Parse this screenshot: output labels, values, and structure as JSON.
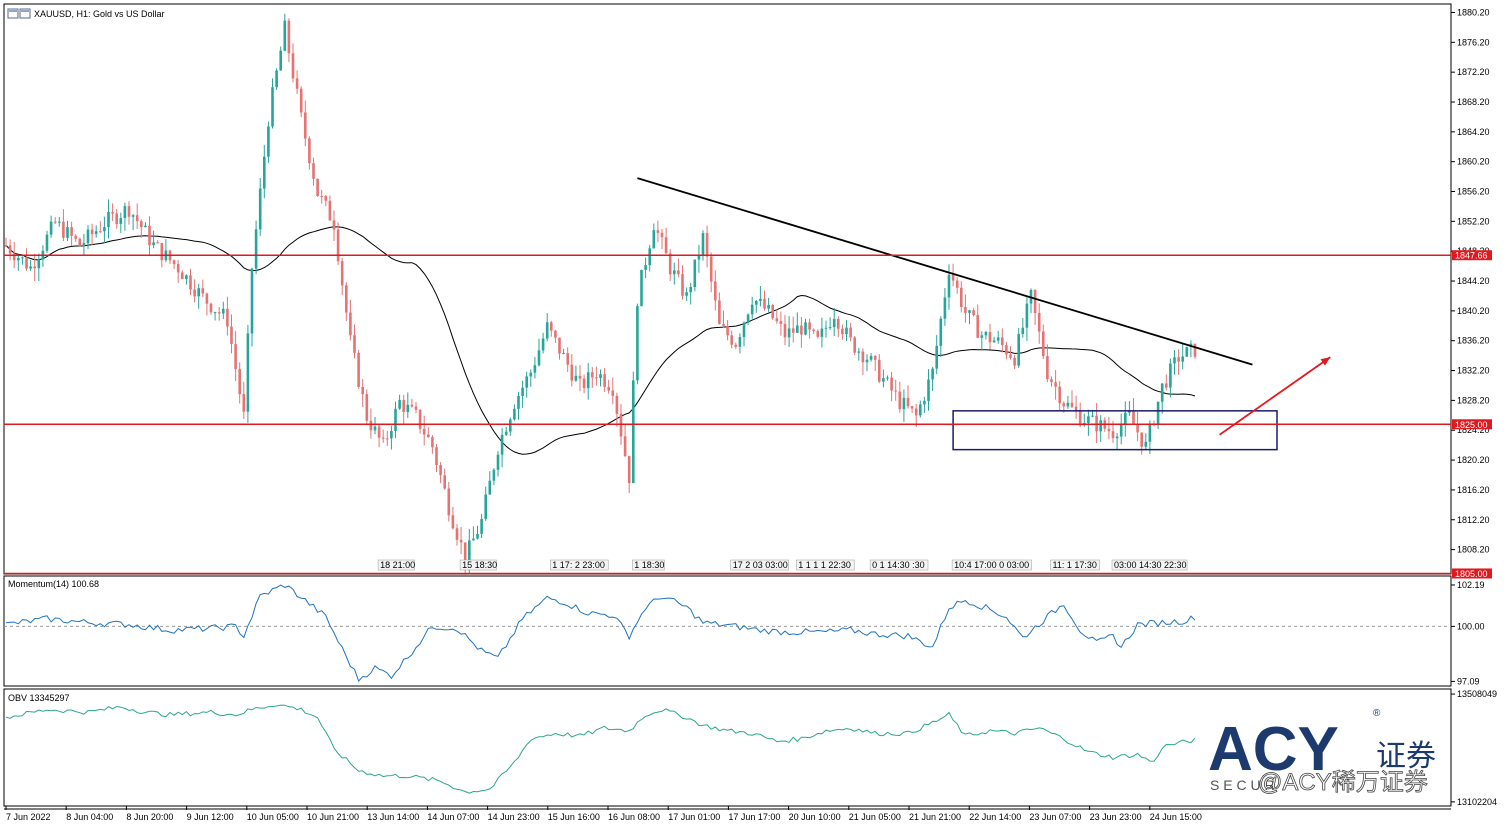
{
  "header": {
    "title": "XAUUSD, H1:  Gold vs US Dollar"
  },
  "chart_data": {
    "type": "candlestick",
    "symbol": "XAUUSD",
    "timeframe": "H1",
    "ylim": [
      1804,
      1880.8
    ],
    "y_ticks": [
      "1880.20",
      "1876.20",
      "1872.20",
      "1868.20",
      "1864.20",
      "1860.20",
      "1856.20",
      "1852.20",
      "1848.20",
      "1844.20",
      "1840.20",
      "1836.20",
      "1832.20",
      "1828.20",
      "1824.20",
      "1820.20",
      "1816.20",
      "1812.20",
      "1808.20"
    ],
    "x_ticks": [
      "7 Jun 2022",
      "8 Jun 04:00",
      "8 Jun 20:00",
      "9 Jun 12:00",
      "10 Jun 05:00",
      "10 Jun 21:00",
      "13 Jun 14:00",
      "14 Jun 07:00",
      "14 Jun 23:00",
      "15 Jun 16:00",
      "16 Jun 08:00",
      "17 Jun 01:00",
      "17 Jun 17:00",
      "20 Jun 10:00",
      "21 Jun 05:00",
      "21 Jun 21:00",
      "22 Jun 14:00",
      "23 Jun 07:00",
      "23 Jun 23:00",
      "24 Jun 15:00"
    ],
    "price_anchors": [
      [
        0,
        1849
      ],
      [
        6,
        1846
      ],
      [
        12,
        1852
      ],
      [
        18,
        1849
      ],
      [
        24,
        1852
      ],
      [
        30,
        1854
      ],
      [
        36,
        1849
      ],
      [
        42,
        1846
      ],
      [
        48,
        1842
      ],
      [
        54,
        1839
      ],
      [
        58,
        1826
      ],
      [
        60,
        1846
      ],
      [
        64,
        1866
      ],
      [
        68,
        1878
      ],
      [
        72,
        1866
      ],
      [
        76,
        1856
      ],
      [
        80,
        1852
      ],
      [
        84,
        1836
      ],
      [
        88,
        1826
      ],
      [
        92,
        1822
      ],
      [
        96,
        1828
      ],
      [
        100,
        1826
      ],
      [
        104,
        1822
      ],
      [
        108,
        1814
      ],
      [
        112,
        1807
      ],
      [
        116,
        1812
      ],
      [
        120,
        1822
      ],
      [
        124,
        1828
      ],
      [
        128,
        1832
      ],
      [
        132,
        1838
      ],
      [
        136,
        1834
      ],
      [
        140,
        1830
      ],
      [
        144,
        1832
      ],
      [
        148,
        1830
      ],
      [
        152,
        1818
      ],
      [
        154,
        1842
      ],
      [
        158,
        1852
      ],
      [
        162,
        1846
      ],
      [
        166,
        1842
      ],
      [
        170,
        1850
      ],
      [
        174,
        1838
      ],
      [
        178,
        1836
      ],
      [
        182,
        1842
      ],
      [
        186,
        1840
      ],
      [
        190,
        1837
      ],
      [
        194,
        1838
      ],
      [
        198,
        1836
      ],
      [
        202,
        1840
      ],
      [
        206,
        1836
      ],
      [
        210,
        1834
      ],
      [
        214,
        1831
      ],
      [
        218,
        1828
      ],
      [
        222,
        1826
      ],
      [
        226,
        1832
      ],
      [
        230,
        1846
      ],
      [
        234,
        1840
      ],
      [
        238,
        1837
      ],
      [
        242,
        1836
      ],
      [
        246,
        1834
      ],
      [
        250,
        1842
      ],
      [
        254,
        1832
      ],
      [
        258,
        1828
      ],
      [
        262,
        1826
      ],
      [
        266,
        1825
      ],
      [
        270,
        1824
      ],
      [
        274,
        1826
      ],
      [
        278,
        1822
      ],
      [
        282,
        1830
      ],
      [
        286,
        1834
      ],
      [
        290,
        1835
      ]
    ],
    "series": [
      {
        "name": "XAUUSD, H1:  Gold vs US Dollar",
        "style": "candles",
        "bull_color": "#26a69a",
        "bear_color": "#e57373"
      },
      {
        "name": "",
        "style": "moving-average",
        "color": "#000000"
      }
    ],
    "horizontal_levels": [
      {
        "value": 1847.66,
        "label": "1847.66",
        "color": "#e0191f"
      },
      {
        "value": 1825.0,
        "label": "1825.00",
        "color": "#e0191f"
      },
      {
        "value": 1805.0,
        "label": "1805.00",
        "color": "#e0191f"
      }
    ],
    "trendline": {
      "from": [
        154,
        1858
      ],
      "to": [
        304,
        1833
      ],
      "color": "#000000"
    },
    "range_box": {
      "x": [
        231,
        310
      ],
      "y": [
        1821.6,
        1826.8
      ],
      "color": "#1a1a6e"
    },
    "arrow": {
      "from": [
        296,
        1823.6
      ],
      "to": [
        323,
        1834
      ],
      "color": "#e0191f"
    },
    "time_labels": [
      {
        "x": 91,
        "text": "18 21:00"
      },
      {
        "x": 111,
        "text": "15 18:30"
      },
      {
        "x": 133,
        "text": "1 17: 2 23:00"
      },
      {
        "x": 153,
        "text": "1 18:30"
      },
      {
        "x": 177,
        "text": "17 2 03 03:00"
      },
      {
        "x": 193,
        "text": "1 1 1 1 22:30"
      },
      {
        "x": 211,
        "text": "0 1 14:30 :30"
      },
      {
        "x": 231,
        "text": "10:4 17:00 0 03:00"
      },
      {
        "x": 255,
        "text": "11: 1 17:30"
      },
      {
        "x": 270,
        "text": "03:00 14:30 22:30"
      }
    ],
    "momentum": {
      "label": "Momentum(14) 100.68",
      "ticks": [
        "102.19",
        "100.00",
        "97.09"
      ],
      "ylim": [
        96.9,
        102.4
      ],
      "baseline": 100.0,
      "color": "#1e73be",
      "anchors": [
        [
          0,
          100.1
        ],
        [
          10,
          100.4
        ],
        [
          20,
          100.2
        ],
        [
          30,
          100.1
        ],
        [
          40,
          99.8
        ],
        [
          50,
          99.9
        ],
        [
          56,
          100.0
        ],
        [
          58,
          99.5
        ],
        [
          62,
          101.6
        ],
        [
          68,
          102.2
        ],
        [
          74,
          101.2
        ],
        [
          78,
          100.5
        ],
        [
          82,
          98.8
        ],
        [
          86,
          97.2
        ],
        [
          90,
          97.8
        ],
        [
          94,
          97.4
        ],
        [
          98,
          98.4
        ],
        [
          104,
          100.0
        ],
        [
          110,
          99.9
        ],
        [
          116,
          98.7
        ],
        [
          120,
          98.3
        ],
        [
          126,
          100.4
        ],
        [
          132,
          101.5
        ],
        [
          136,
          101.3
        ],
        [
          142,
          100.7
        ],
        [
          148,
          100.6
        ],
        [
          152,
          99.5
        ],
        [
          156,
          101.0
        ],
        [
          160,
          101.6
        ],
        [
          166,
          101.0
        ],
        [
          170,
          100.2
        ],
        [
          178,
          100.0
        ],
        [
          184,
          99.8
        ],
        [
          190,
          99.7
        ],
        [
          200,
          99.7
        ],
        [
          206,
          99.8
        ],
        [
          212,
          99.6
        ],
        [
          220,
          99.5
        ],
        [
          226,
          98.9
        ],
        [
          230,
          101.0
        ],
        [
          234,
          101.4
        ],
        [
          240,
          100.9
        ],
        [
          244,
          100.5
        ],
        [
          248,
          99.4
        ],
        [
          254,
          100.5
        ],
        [
          258,
          101.2
        ],
        [
          262,
          99.8
        ],
        [
          266,
          99.1
        ],
        [
          270,
          99.5
        ],
        [
          272,
          98.9
        ],
        [
          276,
          100.1
        ],
        [
          282,
          100.2
        ],
        [
          288,
          100.3
        ],
        [
          292,
          100.7
        ]
      ]
    },
    "obv": {
      "label": "OBV 13345297",
      "ticks": [
        "13508049",
        "13102204"
      ],
      "ylim": [
        13098000,
        13512000
      ],
      "color": "#2aa78c",
      "anchors": [
        [
          0,
          13420000
        ],
        [
          10,
          13450000
        ],
        [
          20,
          13440000
        ],
        [
          28,
          13460000
        ],
        [
          34,
          13440000
        ],
        [
          40,
          13430000
        ],
        [
          50,
          13440000
        ],
        [
          56,
          13430000
        ],
        [
          60,
          13450000
        ],
        [
          66,
          13470000
        ],
        [
          72,
          13450000
        ],
        [
          76,
          13420000
        ],
        [
          80,
          13300000
        ],
        [
          86,
          13220000
        ],
        [
          92,
          13200000
        ],
        [
          98,
          13200000
        ],
        [
          106,
          13180000
        ],
        [
          112,
          13140000
        ],
        [
          118,
          13150000
        ],
        [
          124,
          13250000
        ],
        [
          128,
          13340000
        ],
        [
          134,
          13360000
        ],
        [
          140,
          13350000
        ],
        [
          146,
          13380000
        ],
        [
          152,
          13370000
        ],
        [
          156,
          13430000
        ],
        [
          160,
          13450000
        ],
        [
          166,
          13420000
        ],
        [
          170,
          13390000
        ],
        [
          176,
          13370000
        ],
        [
          182,
          13360000
        ],
        [
          188,
          13330000
        ],
        [
          194,
          13340000
        ],
        [
          200,
          13370000
        ],
        [
          206,
          13380000
        ],
        [
          212,
          13360000
        ],
        [
          220,
          13360000
        ],
        [
          226,
          13400000
        ],
        [
          230,
          13430000
        ],
        [
          234,
          13350000
        ],
        [
          240,
          13370000
        ],
        [
          246,
          13360000
        ],
        [
          252,
          13380000
        ],
        [
          258,
          13340000
        ],
        [
          264,
          13290000
        ],
        [
          270,
          13270000
        ],
        [
          276,
          13280000
        ],
        [
          280,
          13250000
        ],
        [
          282,
          13310000
        ],
        [
          288,
          13330000
        ],
        [
          292,
          13340000
        ]
      ]
    }
  },
  "watermark": {
    "brand": "ACY",
    "cn": "证券",
    "reg": "®",
    "sub": "S E C U R",
    "social": "@ACY稀万证券"
  },
  "colors": {
    "bull": "#26a69a",
    "bear": "#e57373",
    "level": "#e0191f",
    "grid": "#000000",
    "box": "#1a1a6e",
    "arrow": "#e0191f",
    "ma": "#000000",
    "brand": "#1c3a6e"
  },
  "icons": {
    "window": "window-icon"
  }
}
